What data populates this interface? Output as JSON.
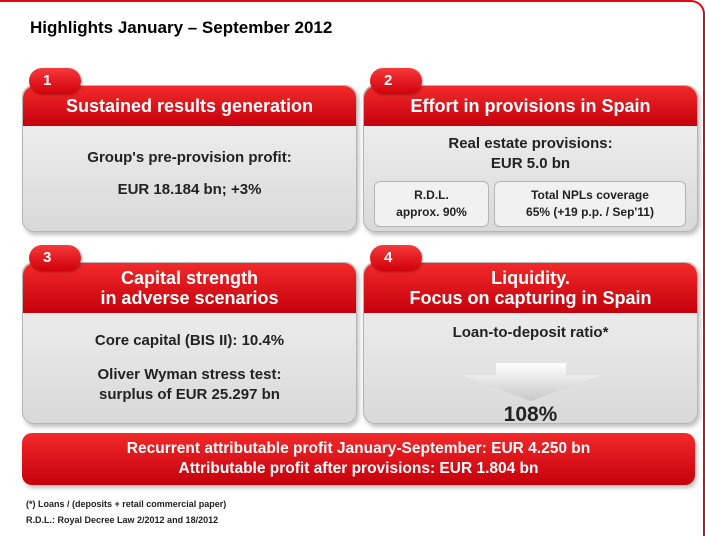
{
  "title": "Highlights January – September 2012",
  "panels": [
    {
      "number": "1",
      "heading": [
        "Sustained results generation"
      ],
      "body": [
        "Group's pre-provision profit:",
        "EUR 18.184 bn; +3%"
      ]
    },
    {
      "number": "2",
      "heading": [
        "Effort in provisions in Spain"
      ],
      "body": [
        "Real estate provisions:",
        "EUR 5.0 bn"
      ],
      "boxes": [
        [
          "R.D.L.",
          "approx. 90%"
        ],
        [
          "Total NPLs coverage",
          "65% (+19 p.p. / Sep'11)"
        ]
      ]
    },
    {
      "number": "3",
      "heading": [
        "Capital strength",
        "in adverse scenarios"
      ],
      "body": [
        "Core capital (BIS II): 10.4%",
        "Oliver Wyman stress test:",
        "surplus of EUR 25.297 bn"
      ]
    },
    {
      "number": "4",
      "heading": [
        "Liquidity.",
        "Focus on capturing in Spain"
      ],
      "body": [
        "Loan-to-deposit ratio*"
      ],
      "figure": "108%"
    }
  ],
  "banner": [
    "Recurrent attributable profit January-September: EUR 4.250 bn",
    "Attributable profit after provisions: EUR 1.804 bn"
  ],
  "footnotes": [
    "(*) Loans / (deposits + retail commercial paper)",
    "R.D.L.: Royal Decree Law 2/2012 and 18/2012"
  ]
}
